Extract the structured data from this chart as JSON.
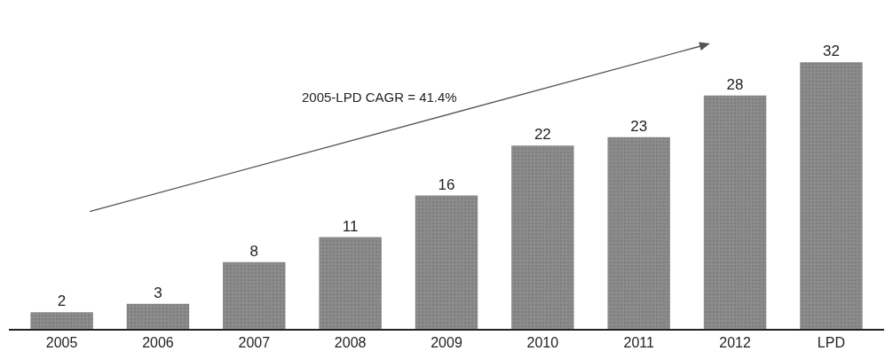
{
  "chart_data": {
    "type": "bar",
    "categories": [
      "2005",
      "2006",
      "2007",
      "2008",
      "2009",
      "2010",
      "2011",
      "2012",
      "LPD"
    ],
    "values": [
      2,
      3,
      8,
      11,
      16,
      22,
      23,
      28,
      32
    ],
    "color": "#8c8c8c",
    "data_labels": true,
    "legend": false,
    "tick_labels": "x",
    "annotations": [
      "2005-LPD CAGR = 41.4%"
    ]
  }
}
